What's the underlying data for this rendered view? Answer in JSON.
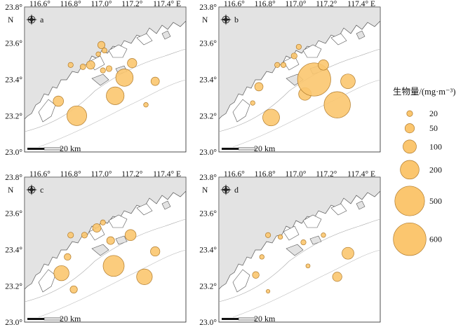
{
  "legend": {
    "title": "生物量/(mg·m⁻³)",
    "entries": [
      {
        "label": "20",
        "value": 20
      },
      {
        "label": "50",
        "value": 50
      },
      {
        "label": "100",
        "value": 100
      },
      {
        "label": "200",
        "value": 200
      },
      {
        "label": "500",
        "value": 500
      },
      {
        "label": "600",
        "value": 600
      }
    ]
  },
  "map": {
    "lon_ticks": [
      "116.6°",
      "116.8°",
      "117.0°",
      "117.2°",
      "117.4° E"
    ],
    "lat_ticks": [
      "23.8°",
      "23.6°",
      "23.4°",
      "23.2°",
      "23.0°"
    ],
    "north_label": "N",
    "compass_label": "N",
    "scale_label": "20 km",
    "lon_range": [
      116.5,
      117.55
    ],
    "lat_range": [
      23.0,
      23.8
    ],
    "bubble_color": "#fbc66f",
    "bubble_stroke": "#b07a2a",
    "land_color": "#e3e3e3"
  },
  "panels": [
    {
      "id": "a",
      "label": "a",
      "stations": [
        {
          "lon": 116.84,
          "lat": 23.2,
          "value": 220
        },
        {
          "lon": 116.72,
          "lat": 23.28,
          "value": 60
        },
        {
          "lon": 116.8,
          "lat": 23.48,
          "value": 15
        },
        {
          "lon": 116.88,
          "lat": 23.47,
          "value": 18
        },
        {
          "lon": 116.93,
          "lat": 23.48,
          "value": 40
        },
        {
          "lon": 116.98,
          "lat": 23.54,
          "value": 12
        },
        {
          "lon": 117.0,
          "lat": 23.59,
          "value": 30
        },
        {
          "lon": 117.02,
          "lat": 23.56,
          "value": 15
        },
        {
          "lon": 117.05,
          "lat": 23.46,
          "value": 20
        },
        {
          "lon": 117.01,
          "lat": 23.45,
          "value": 15
        },
        {
          "lon": 117.15,
          "lat": 23.41,
          "value": 170
        },
        {
          "lon": 117.2,
          "lat": 23.49,
          "value": 50
        },
        {
          "lon": 117.09,
          "lat": 23.31,
          "value": 180
        },
        {
          "lon": 117.29,
          "lat": 23.26,
          "value": 12
        },
        {
          "lon": 117.35,
          "lat": 23.39,
          "value": 40
        }
      ]
    },
    {
      "id": "b",
      "label": "b",
      "stations": [
        {
          "lon": 116.84,
          "lat": 23.19,
          "value": 160
        },
        {
          "lon": 116.72,
          "lat": 23.27,
          "value": 12
        },
        {
          "lon": 116.76,
          "lat": 23.36,
          "value": 40
        },
        {
          "lon": 116.88,
          "lat": 23.48,
          "value": 15
        },
        {
          "lon": 116.92,
          "lat": 23.48,
          "value": 15
        },
        {
          "lon": 116.99,
          "lat": 23.53,
          "value": 20
        },
        {
          "lon": 117.02,
          "lat": 23.58,
          "value": 15
        },
        {
          "lon": 117.06,
          "lat": 23.32,
          "value": 90
        },
        {
          "lon": 117.12,
          "lat": 23.4,
          "value": 620
        },
        {
          "lon": 117.18,
          "lat": 23.48,
          "value": 60
        },
        {
          "lon": 117.27,
          "lat": 23.26,
          "value": 390
        },
        {
          "lon": 117.34,
          "lat": 23.39,
          "value": 120
        }
      ]
    },
    {
      "id": "c",
      "label": "c",
      "stations": [
        {
          "lon": 116.74,
          "lat": 23.27,
          "value": 130
        },
        {
          "lon": 116.82,
          "lat": 23.18,
          "value": 30
        },
        {
          "lon": 116.78,
          "lat": 23.36,
          "value": 25
        },
        {
          "lon": 116.8,
          "lat": 23.48,
          "value": 20
        },
        {
          "lon": 116.89,
          "lat": 23.48,
          "value": 20
        },
        {
          "lon": 116.97,
          "lat": 23.52,
          "value": 40
        },
        {
          "lon": 117.01,
          "lat": 23.55,
          "value": 15
        },
        {
          "lon": 117.06,
          "lat": 23.45,
          "value": 35
        },
        {
          "lon": 117.08,
          "lat": 23.31,
          "value": 250
        },
        {
          "lon": 117.19,
          "lat": 23.48,
          "value": 70
        },
        {
          "lon": 117.28,
          "lat": 23.25,
          "value": 140
        },
        {
          "lon": 117.35,
          "lat": 23.39,
          "value": 50
        }
      ]
    },
    {
      "id": "d",
      "label": "d",
      "stations": [
        {
          "lon": 116.74,
          "lat": 23.26,
          "value": 25
        },
        {
          "lon": 116.82,
          "lat": 23.17,
          "value": 8
        },
        {
          "lon": 116.78,
          "lat": 23.36,
          "value": 12
        },
        {
          "lon": 116.82,
          "lat": 23.48,
          "value": 15
        },
        {
          "lon": 116.9,
          "lat": 23.47,
          "value": 12
        },
        {
          "lon": 117.05,
          "lat": 23.44,
          "value": 15
        },
        {
          "lon": 117.08,
          "lat": 23.31,
          "value": 10
        },
        {
          "lon": 117.18,
          "lat": 23.48,
          "value": 12
        },
        {
          "lon": 117.27,
          "lat": 23.25,
          "value": 50
        },
        {
          "lon": 117.34,
          "lat": 23.38,
          "value": 80
        }
      ]
    }
  ]
}
